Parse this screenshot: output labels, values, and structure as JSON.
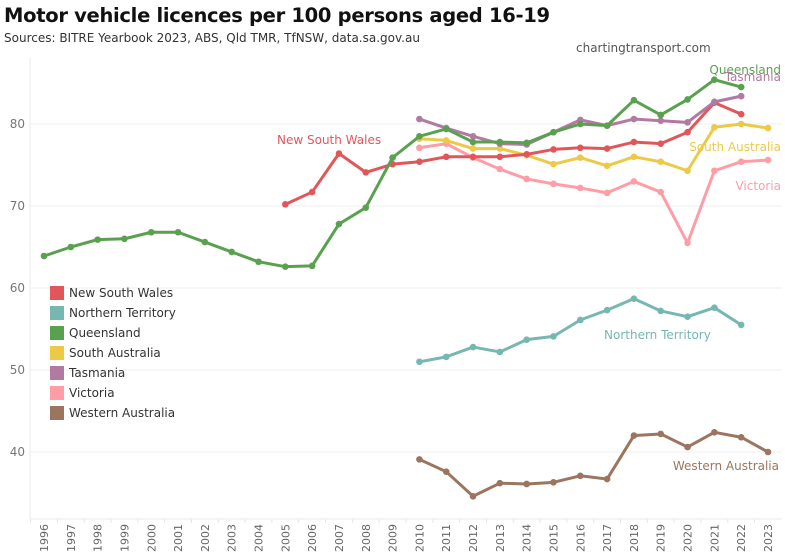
{
  "header": {
    "title": "Motor vehicle licences per 100 persons aged 16-19",
    "subtitle": "Sources: BITRE Yearbook 2023, ABS, Qld TMR, TfNSW, data.sa.gov.au",
    "credit": "chartingtransport.com"
  },
  "chart_data": {
    "type": "line",
    "title": "Motor vehicle licences per 100 persons aged 16-19",
    "subtitle": "Sources: BITRE Yearbook 2023, ABS, Qld TMR, TfNSW, data.sa.gov.au",
    "xlabel": "",
    "ylabel": "",
    "x": [
      1996,
      1997,
      1998,
      1999,
      2000,
      2001,
      2002,
      2003,
      2004,
      2005,
      2006,
      2007,
      2008,
      2009,
      2010,
      2011,
      2012,
      2013,
      2014,
      2015,
      2016,
      2017,
      2018,
      2019,
      2020,
      2021,
      2022,
      2023
    ],
    "xlim": [
      1996,
      2023
    ],
    "ylim": [
      32.5,
      88
    ],
    "yticks": [
      40,
      50,
      60,
      70,
      80
    ],
    "grid": true,
    "legend_position": "left-middle",
    "series": [
      {
        "name": "New South Wales",
        "color": "#e15759",
        "label_text": "New South Wales",
        "values": [
          null,
          null,
          null,
          null,
          null,
          null,
          null,
          null,
          null,
          70.2,
          71.7,
          76.4,
          74.1,
          75.1,
          75.4,
          76.0,
          76.0,
          76.0,
          76.3,
          76.9,
          77.1,
          77.0,
          77.8,
          77.6,
          79.0,
          82.6,
          81.2,
          null
        ]
      },
      {
        "name": "Northern Territory",
        "color": "#76b7b2",
        "label_text": "Northern Territory",
        "values": [
          null,
          null,
          null,
          null,
          null,
          null,
          null,
          null,
          null,
          null,
          null,
          null,
          null,
          null,
          51.0,
          51.6,
          52.8,
          52.2,
          53.7,
          54.1,
          56.1,
          57.3,
          58.7,
          57.2,
          56.5,
          57.6,
          55.5,
          null
        ]
      },
      {
        "name": "Queensland",
        "color": "#59a14f",
        "label_text": "Queensland",
        "values": [
          63.9,
          65.0,
          65.9,
          66.0,
          66.8,
          66.8,
          65.6,
          64.4,
          63.2,
          62.6,
          62.7,
          67.8,
          69.8,
          75.9,
          78.5,
          79.4,
          77.8,
          77.8,
          77.7,
          79.0,
          80.0,
          79.8,
          82.9,
          81.1,
          83.0,
          85.4,
          84.5,
          null
        ]
      },
      {
        "name": "South Australia",
        "color": "#edc948",
        "label_text": "South Australia",
        "values": [
          null,
          null,
          null,
          null,
          null,
          null,
          null,
          null,
          null,
          null,
          null,
          null,
          null,
          null,
          78.2,
          78.0,
          77.0,
          77.0,
          76.2,
          75.1,
          75.9,
          74.9,
          76.0,
          75.4,
          74.3,
          79.6,
          80.0,
          79.5
        ]
      },
      {
        "name": "Tasmania",
        "color": "#b07aa1",
        "label_text": "Tasmania",
        "values": [
          null,
          null,
          null,
          null,
          null,
          null,
          null,
          null,
          null,
          null,
          null,
          null,
          null,
          null,
          80.6,
          79.5,
          78.5,
          77.6,
          77.5,
          79.0,
          80.5,
          79.8,
          80.6,
          80.4,
          80.2,
          82.7,
          83.4,
          null
        ]
      },
      {
        "name": "Victoria",
        "color": "#ff9da7",
        "label_text": "Victoria",
        "values": [
          null,
          null,
          null,
          null,
          null,
          null,
          null,
          null,
          null,
          null,
          null,
          null,
          null,
          null,
          77.1,
          77.6,
          75.9,
          74.5,
          73.3,
          72.7,
          72.2,
          71.6,
          73.0,
          71.7,
          65.5,
          74.3,
          75.4,
          75.6
        ]
      },
      {
        "name": "Western Australia",
        "color": "#9c755f",
        "label_text": "Western Australia",
        "values": [
          null,
          null,
          null,
          null,
          null,
          null,
          null,
          null,
          null,
          null,
          null,
          null,
          null,
          null,
          39.1,
          37.6,
          34.6,
          36.2,
          36.1,
          36.3,
          37.1,
          36.7,
          42.0,
          42.2,
          40.6,
          42.4,
          41.8,
          40.0
        ]
      }
    ],
    "legend": [
      "New South Wales",
      "Northern Territory",
      "Queensland",
      "South Australia",
      "Tasmania",
      "Victoria",
      "Western Australia"
    ]
  }
}
